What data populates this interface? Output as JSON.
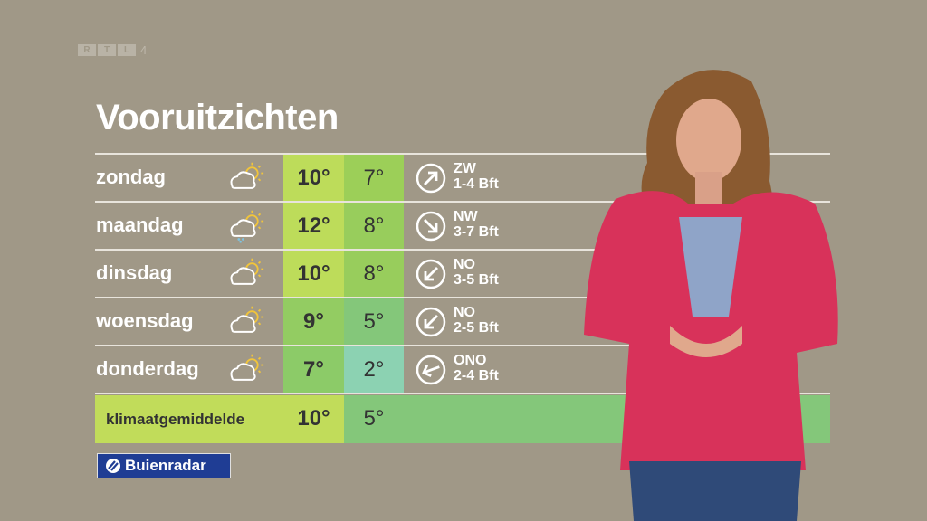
{
  "channel_logo": {
    "letters": [
      "R",
      "T",
      "L"
    ],
    "number": "4"
  },
  "title": "Vooruitzichten",
  "forecast": [
    {
      "day": "zondag",
      "icon": "partly-cloudy-icon",
      "max": "10°",
      "min": "7°",
      "wind_dir": "ZW",
      "wind_force": "1-4 Bft",
      "arrow_rotation_deg": 45,
      "max_color": "#bddc5a",
      "min_color": "#9ccf58"
    },
    {
      "day": "maandag",
      "icon": "cloud-sun-rain-icon",
      "max": "12°",
      "min": "8°",
      "wind_dir": "NW",
      "wind_force": "3-7 Bft",
      "arrow_rotation_deg": 135,
      "max_color": "#bddc5a",
      "min_color": "#98cd5c"
    },
    {
      "day": "dinsdag",
      "icon": "partly-cloudy-icon",
      "max": "10°",
      "min": "8°",
      "wind_dir": "NO",
      "wind_force": "3-5 Bft",
      "arrow_rotation_deg": 225,
      "max_color": "#bddc5a",
      "min_color": "#98cd5c"
    },
    {
      "day": "woensdag",
      "icon": "cloud-sun-icon",
      "max": "9°",
      "min": "5°",
      "wind_dir": "NO",
      "wind_force": "2-5 Bft",
      "arrow_rotation_deg": 225,
      "max_color": "#93cc62",
      "min_color": "#84c77a"
    },
    {
      "day": "donderdag",
      "icon": "cloud-sun-icon",
      "max": "7°",
      "min": "2°",
      "wind_dir": "ONO",
      "wind_force": "2-4 Bft",
      "arrow_rotation_deg": 250,
      "max_color": "#8ccb68",
      "min_color": "#8cd2b2"
    }
  ],
  "climate": {
    "label": "klimaatgemiddelde",
    "max": "10°",
    "min": "5°"
  },
  "brand": {
    "name": "Buienradar",
    "color": "#1f3d94"
  }
}
